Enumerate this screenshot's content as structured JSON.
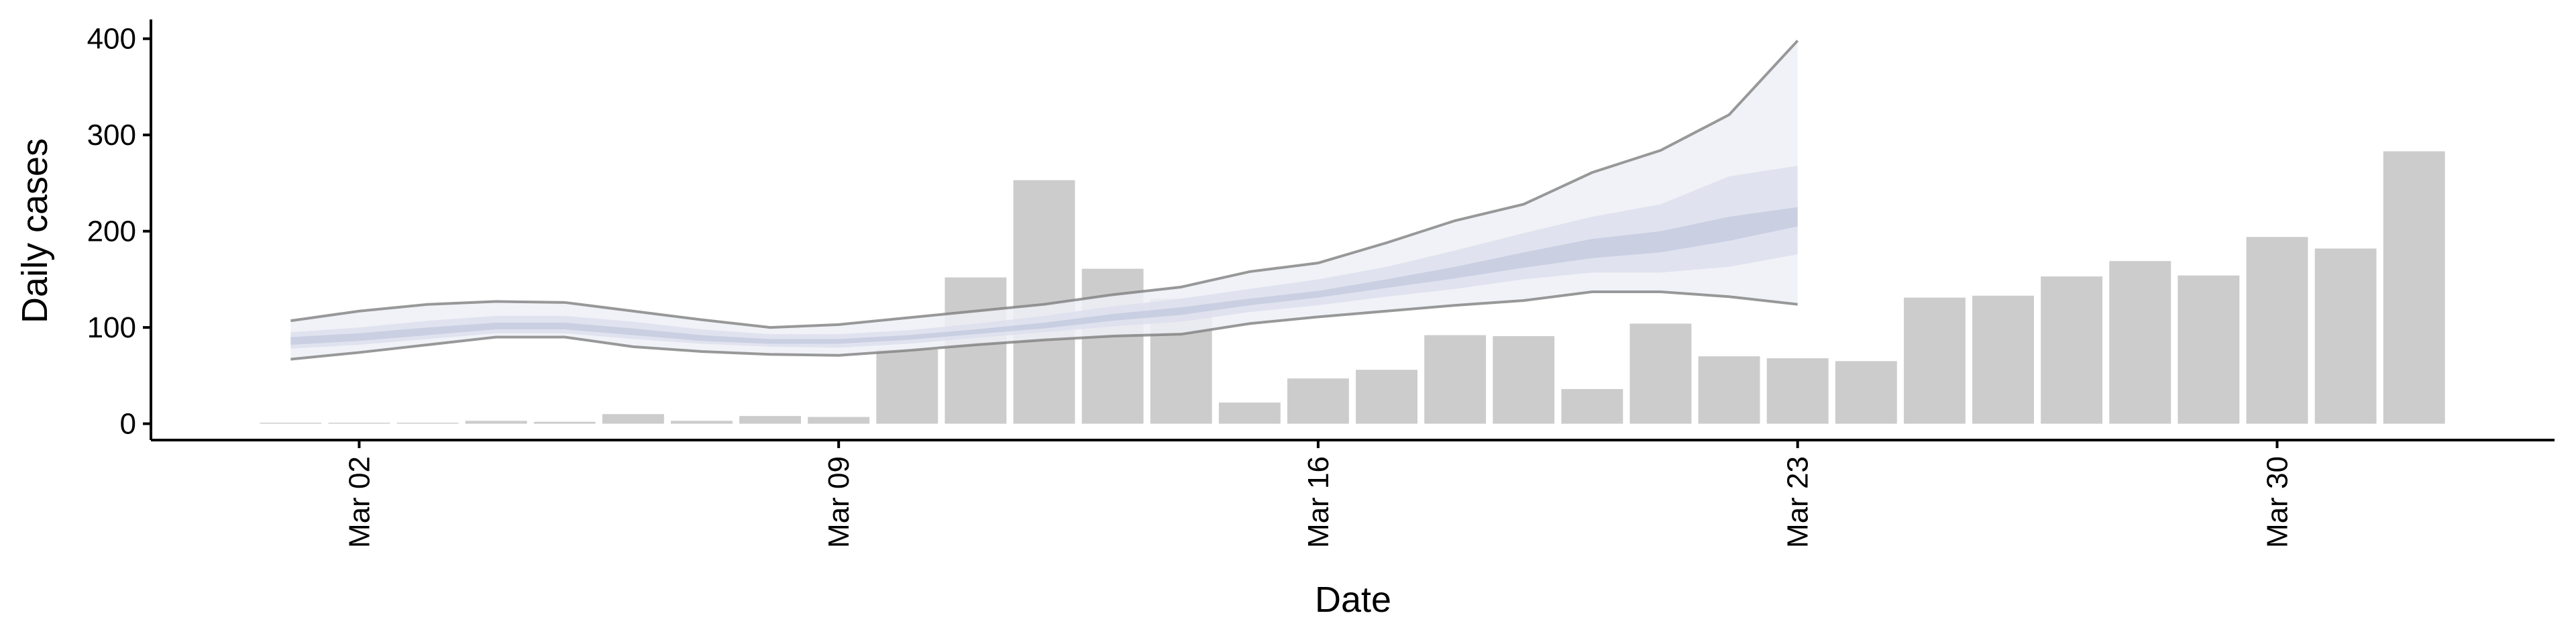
{
  "chart_data": {
    "type": "bar",
    "x_label": "Date",
    "y_label": "Daily cases",
    "categories": [
      null,
      "Mar 02",
      null,
      null,
      null,
      null,
      null,
      null,
      "Mar 09",
      null,
      null,
      null,
      null,
      null,
      null,
      "Mar 16",
      null,
      null,
      null,
      null,
      null,
      null,
      "Mar 23",
      null,
      null,
      null,
      null,
      null,
      null,
      "Mar 30",
      null,
      null
    ],
    "values": [
      1,
      1,
      1,
      3,
      2,
      10,
      3,
      8,
      7,
      77,
      152,
      253,
      161,
      130,
      22,
      47,
      56,
      92,
      91,
      36,
      104,
      70,
      68,
      65,
      131,
      133,
      153,
      169,
      154,
      194,
      182,
      283
    ],
    "color": "#cccccc",
    "ribbons": [
      {
        "color": "#eef0f6",
        "upper": [
          107,
          117,
          124,
          127,
          126,
          117,
          108,
          100,
          103,
          110,
          117,
          124,
          134,
          142,
          158,
          167,
          188,
          211,
          228,
          261,
          284,
          321,
          398
        ],
        "lower": [
          67,
          74,
          82,
          90,
          90,
          80,
          75,
          72,
          71,
          76,
          82,
          87,
          91,
          93,
          104,
          111,
          117,
          123,
          128,
          137,
          137,
          132,
          124
        ]
      },
      {
        "color": "#dde1ed",
        "upper": [
          95,
          100,
          107,
          112,
          112,
          106,
          98,
          93,
          93,
          97,
          104,
          112,
          122,
          130,
          140,
          150,
          163,
          180,
          198,
          215,
          228,
          257,
          268
        ],
        "lower": [
          78,
          82,
          88,
          94,
          94,
          88,
          83,
          80,
          79,
          83,
          89,
          95,
          101,
          106,
          116,
          123,
          132,
          140,
          150,
          157,
          157,
          163,
          176
        ]
      },
      {
        "color": "#c5cbdf",
        "upper": [
          90,
          94,
          100,
          105,
          105,
          99,
          92,
          88,
          88,
          92,
          98,
          105,
          114,
          121,
          130,
          138,
          150,
          163,
          178,
          192,
          200,
          215,
          225
        ],
        "lower": [
          82,
          86,
          92,
          98,
          98,
          92,
          86,
          83,
          83,
          87,
          93,
          99,
          107,
          113,
          123,
          131,
          141,
          151,
          162,
          172,
          178,
          190,
          205
        ]
      }
    ],
    "line_color": "#808080",
    "ylim": [
      -17,
      420
    ],
    "yticks": [
      0,
      100,
      200,
      300,
      400
    ]
  }
}
